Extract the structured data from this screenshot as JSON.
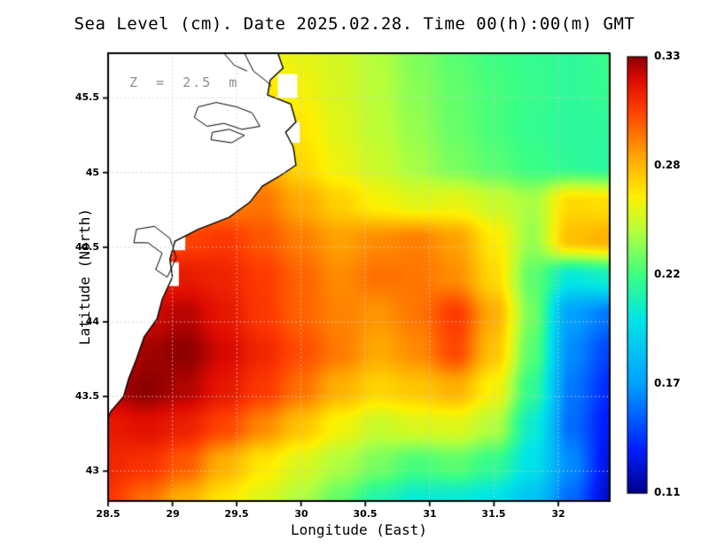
{
  "chart_data": {
    "type": "heatmap",
    "title": "Sea Level (cm). Date 2025.02.28. Time 00(h):00(m) GMT",
    "annotation": "Z = 2.5 m",
    "xlabel": "Longitude (East)",
    "ylabel": "Latitude (North)",
    "x_range": [
      28.5,
      32.4
    ],
    "y_range": [
      42.8,
      45.8
    ],
    "x_tick_values": [
      28.5,
      29,
      29.5,
      30,
      30.5,
      31,
      31.5,
      32
    ],
    "x_tick_labels": [
      "28.5",
      "29",
      "29.5",
      "30",
      "30.5",
      "31",
      "31.5",
      "32"
    ],
    "y_tick_values": [
      43,
      43.5,
      44,
      44.5,
      45,
      45.5
    ],
    "y_tick_labels": [
      "43",
      "43.5",
      "44",
      "44.5",
      "45",
      "45.5"
    ],
    "grid": true,
    "colorbar": {
      "min": 0.11,
      "max": 0.33,
      "tick_values": [
        0.33,
        0.275,
        0.22,
        0.165,
        0.11
      ],
      "tick_labels": [
        "0.33",
        "0.28",
        "0.22",
        "0.17",
        "0.11"
      ]
    },
    "grid_lons": [
      28.5,
      28.8,
      29.1,
      29.4,
      29.7,
      30.0,
      30.3,
      30.6,
      30.9,
      31.2,
      31.5,
      31.8,
      32.1,
      32.4
    ],
    "grid_lats": [
      45.8,
      45.55,
      45.3,
      45.05,
      44.8,
      44.55,
      44.3,
      44.05,
      43.8,
      43.55,
      43.3,
      43.05,
      42.8
    ],
    "values": [
      [
        0.26,
        0.26,
        0.26,
        0.26,
        0.258,
        0.254,
        0.249,
        0.242,
        0.232,
        0.225,
        0.22,
        0.217,
        0.215,
        0.218
      ],
      [
        0.265,
        0.265,
        0.265,
        0.265,
        0.262,
        0.257,
        0.25,
        0.243,
        0.234,
        0.227,
        0.222,
        0.218,
        0.215,
        0.217
      ],
      [
        0.272,
        0.272,
        0.272,
        0.272,
        0.272,
        0.262,
        0.252,
        0.244,
        0.236,
        0.228,
        0.222,
        0.217,
        0.214,
        0.215
      ],
      [
        0.278,
        0.278,
        0.278,
        0.278,
        0.281,
        0.266,
        0.255,
        0.247,
        0.239,
        0.231,
        0.225,
        0.219,
        0.215,
        0.213
      ],
      [
        0.286,
        0.286,
        0.286,
        0.288,
        0.291,
        0.279,
        0.268,
        0.258,
        0.252,
        0.254,
        0.247,
        0.24,
        0.266,
        0.264
      ],
      [
        0.298,
        0.3,
        0.302,
        0.305,
        0.298,
        0.289,
        0.281,
        0.286,
        0.289,
        0.281,
        0.261,
        0.237,
        0.273,
        0.277
      ],
      [
        0.306,
        0.31,
        0.314,
        0.311,
        0.304,
        0.295,
        0.286,
        0.292,
        0.291,
        0.286,
        0.266,
        0.226,
        0.2,
        0.206
      ],
      [
        0.314,
        0.32,
        0.324,
        0.315,
        0.305,
        0.295,
        0.288,
        0.284,
        0.291,
        0.304,
        0.278,
        0.23,
        0.166,
        0.155
      ],
      [
        0.32,
        0.327,
        0.33,
        0.32,
        0.31,
        0.3,
        0.29,
        0.279,
        0.286,
        0.301,
        0.272,
        0.225,
        0.16,
        0.142
      ],
      [
        0.325,
        0.33,
        0.325,
        0.315,
        0.305,
        0.292,
        0.277,
        0.267,
        0.271,
        0.277,
        0.258,
        0.216,
        0.155,
        0.135
      ],
      [
        0.314,
        0.317,
        0.312,
        0.302,
        0.287,
        0.272,
        0.257,
        0.247,
        0.251,
        0.252,
        0.242,
        0.203,
        0.152,
        0.13
      ],
      [
        0.31,
        0.307,
        0.297,
        0.277,
        0.262,
        0.251,
        0.241,
        0.231,
        0.222,
        0.226,
        0.217,
        0.196,
        0.16,
        0.126
      ],
      [
        0.305,
        0.292,
        0.277,
        0.262,
        0.251,
        0.241,
        0.227,
        0.211,
        0.201,
        0.201,
        0.196,
        0.181,
        0.151,
        0.121
      ]
    ],
    "colormap_stops": [
      [
        0.0,
        0,
        0,
        140
      ],
      [
        0.1,
        0,
        30,
        255
      ],
      [
        0.25,
        0,
        160,
        255
      ],
      [
        0.4,
        0,
        230,
        230
      ],
      [
        0.5,
        60,
        255,
        130
      ],
      [
        0.6,
        180,
        255,
        60
      ],
      [
        0.68,
        255,
        240,
        0
      ],
      [
        0.78,
        255,
        160,
        0
      ],
      [
        0.88,
        255,
        60,
        0
      ],
      [
        0.95,
        220,
        10,
        0
      ],
      [
        1.0,
        140,
        0,
        0
      ]
    ],
    "land": {
      "coastline": [
        [
          29.82,
          45.8
        ],
        [
          29.86,
          45.7
        ],
        [
          29.76,
          45.62
        ],
        [
          29.74,
          45.52
        ],
        [
          29.92,
          45.46
        ],
        [
          29.96,
          45.34
        ],
        [
          29.88,
          45.27
        ],
        [
          29.94,
          45.17
        ],
        [
          29.96,
          45.05
        ],
        [
          29.82,
          44.97
        ],
        [
          29.7,
          44.91
        ],
        [
          29.6,
          44.8
        ],
        [
          29.44,
          44.7
        ],
        [
          29.2,
          44.62
        ],
        [
          29.02,
          44.54
        ],
        [
          28.98,
          44.42
        ],
        [
          29.0,
          44.3
        ],
        [
          28.92,
          44.15
        ],
        [
          28.88,
          44.02
        ],
        [
          28.78,
          43.9
        ],
        [
          28.72,
          43.75
        ],
        [
          28.66,
          43.62
        ],
        [
          28.62,
          43.5
        ],
        [
          28.52,
          43.4
        ],
        [
          28.5,
          43.35
        ],
        [
          28.5,
          45.8
        ]
      ],
      "lakes": [
        [
          [
            29.2,
            45.44
          ],
          [
            29.34,
            45.47
          ],
          [
            29.5,
            45.44
          ],
          [
            29.62,
            45.4
          ],
          [
            29.68,
            45.31
          ],
          [
            29.54,
            45.29
          ],
          [
            29.4,
            45.33
          ],
          [
            29.27,
            45.31
          ],
          [
            29.17,
            45.37
          ]
        ],
        [
          [
            29.3,
            45.22
          ],
          [
            29.46,
            45.2
          ],
          [
            29.56,
            45.25
          ],
          [
            29.44,
            45.29
          ],
          [
            29.31,
            45.27
          ]
        ],
        [
          [
            28.72,
            44.62
          ],
          [
            28.86,
            44.64
          ],
          [
            28.98,
            44.56
          ],
          [
            29.03,
            44.43
          ],
          [
            28.96,
            44.3
          ],
          [
            28.87,
            44.35
          ],
          [
            28.92,
            44.46
          ],
          [
            28.81,
            44.53
          ],
          [
            28.7,
            44.53
          ]
        ]
      ],
      "coast_details": [
        [
          [
            29.56,
            45.8
          ],
          [
            29.63,
            45.68
          ],
          [
            29.72,
            45.62
          ],
          [
            29.77,
            45.58
          ]
        ],
        [
          [
            29.4,
            45.8
          ],
          [
            29.48,
            45.72
          ],
          [
            29.58,
            45.68
          ]
        ]
      ],
      "mask_rects": [
        [
          29.82,
          45.5,
          29.97,
          45.66
        ],
        [
          29.88,
          45.2,
          29.99,
          45.34
        ],
        [
          28.98,
          44.48,
          29.1,
          44.62
        ],
        [
          28.94,
          44.24,
          29.05,
          44.4
        ]
      ]
    }
  }
}
